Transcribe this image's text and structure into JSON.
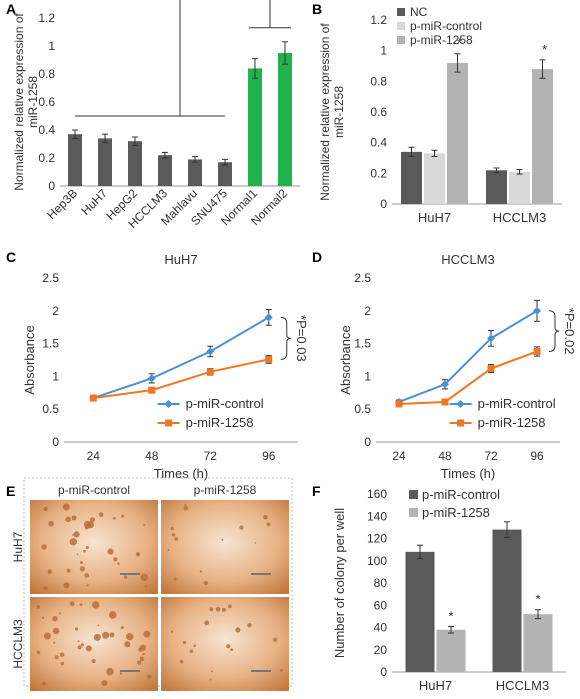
{
  "panels": {
    "A": "A",
    "B": "B",
    "C": "C",
    "D": "D",
    "E": "E",
    "F": "F"
  },
  "colors": {
    "dark_bar": "#5a5a5a",
    "mid_bar": "#b3b3b3",
    "light_bar": "#d8d8d8",
    "green_bar": "#22b24c",
    "blue_line": "#4a90d9",
    "orange_line": "#ee7722",
    "colony_bg": "#e8b184",
    "colony_dot": "#b8703a"
  },
  "photos": {
    "col_labels": [
      "p-miR-control",
      "p-miR-1258"
    ],
    "row_labels": [
      "HuH7",
      "HCCLM3"
    ]
  },
  "chart_data": [
    {
      "panel": "A",
      "type": "bar",
      "ylabel": "Normalized relative expression of miR-1258",
      "ylim": [
        0,
        1.2
      ],
      "yticks": [
        0,
        0.2,
        0.4,
        0.6,
        0.8,
        1,
        1.2
      ],
      "categories": [
        "Hep3B",
        "HuH7",
        "HepG2",
        "HCCLM3",
        "Mahlavu",
        "SNU475",
        "Normal1",
        "Normal2"
      ],
      "values": [
        0.37,
        0.34,
        0.32,
        0.22,
        0.19,
        0.17,
        0.84,
        0.95
      ],
      "errors": [
        0.03,
        0.03,
        0.03,
        0.02,
        0.02,
        0.02,
        0.07,
        0.08
      ],
      "annotation": "*"
    },
    {
      "panel": "B",
      "type": "bar",
      "ylabel": "Normalized relative expression of miR-1258",
      "ylim": [
        0,
        1.2
      ],
      "yticks": [
        0,
        0.2,
        0.4,
        0.6,
        0.8,
        1,
        1.2
      ],
      "categories": [
        "HuH7",
        "HCCLM3"
      ],
      "series": [
        {
          "name": "NC",
          "values": [
            0.34,
            0.22
          ],
          "errors": [
            0.03,
            0.015
          ]
        },
        {
          "name": "p-miR-control",
          "values": [
            0.33,
            0.21
          ],
          "errors": [
            0.02,
            0.015
          ]
        },
        {
          "name": "p-miR-1258",
          "values": [
            0.92,
            0.88
          ],
          "errors": [
            0.06,
            0.06
          ]
        }
      ],
      "legend": "top-left",
      "annotation": "*"
    },
    {
      "panel": "C",
      "type": "line",
      "title": "HuH7",
      "xlabel": "Times (h)",
      "ylabel": "Absorbance",
      "x": [
        "24",
        "48",
        "72",
        "96"
      ],
      "ylim": [
        0,
        2.5
      ],
      "yticks": [
        0,
        0.5,
        1,
        1.5,
        2,
        2.5
      ],
      "series": [
        {
          "name": "p-miR-control",
          "values": [
            0.67,
            0.97,
            1.38,
            1.9
          ],
          "errors": [
            0.03,
            0.07,
            0.08,
            0.12
          ]
        },
        {
          "name": "p-miR-1258",
          "values": [
            0.67,
            0.79,
            1.07,
            1.26
          ],
          "errors": [
            0.03,
            0.04,
            0.05,
            0.06
          ]
        }
      ],
      "legend": "bottom-right",
      "annotation": "*P=0.03"
    },
    {
      "panel": "D",
      "type": "line",
      "title": "HCCLM3",
      "xlabel": "Times (h)",
      "ylabel": "Absorbance",
      "x": [
        "24",
        "48",
        "72",
        "96"
      ],
      "ylim": [
        0,
        2.5
      ],
      "yticks": [
        0,
        0.5,
        1,
        1.5,
        2,
        2.5
      ],
      "series": [
        {
          "name": "p-miR-control",
          "values": [
            0.61,
            0.88,
            1.58,
            2.0
          ],
          "errors": [
            0.03,
            0.07,
            0.12,
            0.16
          ]
        },
        {
          "name": "p-miR-1258",
          "values": [
            0.58,
            0.61,
            1.12,
            1.38
          ],
          "errors": [
            0.03,
            0.03,
            0.06,
            0.07
          ]
        }
      ],
      "legend": "bottom-right",
      "annotation": "*P=0.02"
    },
    {
      "panel": "F",
      "type": "bar",
      "ylabel": "Number of colony per well",
      "ylim": [
        0,
        160
      ],
      "yticks": [
        0,
        20,
        40,
        60,
        80,
        100,
        120,
        140,
        160
      ],
      "categories": [
        "HuH7",
        "HCCLM3"
      ],
      "series": [
        {
          "name": "p-miR-control",
          "values": [
            108,
            128
          ],
          "errors": [
            6,
            7
          ]
        },
        {
          "name": "p-miR-1258",
          "values": [
            38,
            52
          ],
          "errors": [
            3,
            4
          ]
        }
      ],
      "legend": "top-left",
      "annotation": "*"
    }
  ]
}
